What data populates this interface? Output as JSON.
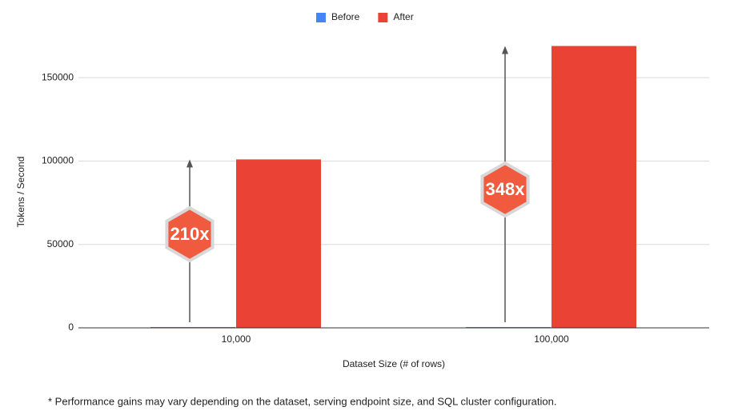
{
  "chart_data": {
    "type": "bar",
    "y_label": "Tokens / Second",
    "x_label": "Dataset Size (# of rows)",
    "categories": [
      "10,000",
      "100,000"
    ],
    "series": [
      {
        "name": "Before",
        "color": "#4285f4",
        "values": [
          483,
          487
        ]
      },
      {
        "name": "After",
        "color": "#ea4335",
        "values": [
          101000,
          169000
        ]
      }
    ],
    "ylim": [
      0,
      175000
    ],
    "yticks": [
      0,
      50000,
      100000,
      150000
    ],
    "grid": true,
    "legend": "top",
    "annotations": [
      "210x",
      "348x"
    ],
    "footnote": "* Performance gains may vary depending on the dataset, serving endpoint size, and SQL cluster configuration."
  }
}
